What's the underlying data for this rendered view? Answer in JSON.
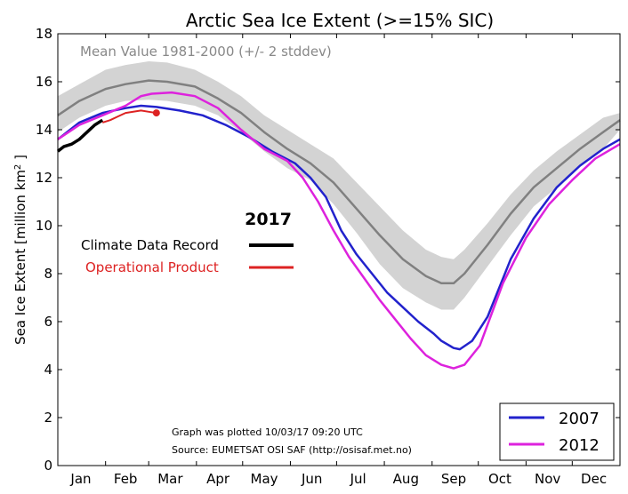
{
  "chart_data": {
    "type": "line",
    "title": "Arctic Sea Ice Extent (>=15% SIC)",
    "ylabel": "Sea Ice Extent [million km",
    "ylabel_sup": "2",
    "ylabel_end": " ]",
    "ylim": [
      0,
      18
    ],
    "xlim": [
      1,
      366
    ],
    "y_ticks": [
      0,
      2,
      4,
      6,
      8,
      10,
      12,
      14,
      16,
      18
    ],
    "month_labels": [
      "Jan",
      "Feb",
      "Mar",
      "Apr",
      "May",
      "Jun",
      "Jul",
      "Aug",
      "Sep",
      "Oct",
      "Nov",
      "Dec"
    ],
    "month_label_days": [
      16,
      45,
      74,
      105,
      135,
      166,
      196,
      227,
      258,
      288,
      319,
      349
    ],
    "month_tick_days": [
      1,
      32,
      60,
      91,
      121,
      152,
      182,
      213,
      244,
      274,
      305,
      335,
      366
    ],
    "mean_label": "Mean Value 1981-2000 (+/- 2 stddev)",
    "mean_band_color": "#d3d3d3",
    "series": [
      {
        "name": "Mean Value 1981-2000",
        "color": "#808080",
        "x": [
          1,
          15,
          32,
          45,
          60,
          72,
          90,
          105,
          120,
          135,
          150,
          165,
          180,
          195,
          210,
          225,
          240,
          250,
          258,
          265,
          280,
          295,
          310,
          325,
          340,
          355,
          366
        ],
        "y": [
          14.6,
          15.2,
          15.7,
          15.9,
          16.05,
          16.0,
          15.8,
          15.3,
          14.7,
          13.9,
          13.2,
          12.6,
          11.8,
          10.7,
          9.6,
          8.6,
          7.9,
          7.6,
          7.6,
          8.0,
          9.2,
          10.5,
          11.6,
          12.4,
          13.2,
          13.9,
          14.4
        ],
        "band_upper": [
          15.4,
          15.9,
          16.5,
          16.7,
          16.85,
          16.8,
          16.5,
          16.0,
          15.4,
          14.6,
          14.0,
          13.4,
          12.8,
          11.8,
          10.8,
          9.8,
          9.0,
          8.7,
          8.6,
          9.0,
          10.1,
          11.3,
          12.3,
          13.1,
          13.8,
          14.5,
          14.7
        ],
        "band_lower": [
          13.9,
          14.5,
          15.0,
          15.2,
          15.25,
          15.2,
          15.0,
          14.6,
          13.9,
          13.1,
          12.4,
          11.9,
          10.9,
          9.7,
          8.4,
          7.4,
          6.8,
          6.5,
          6.5,
          7.0,
          8.3,
          9.6,
          10.8,
          11.6,
          12.5,
          13.2,
          14.0
        ]
      },
      {
        "name": "2007",
        "color": "#2222cc",
        "x": [
          1,
          15,
          30,
          45,
          55,
          65,
          80,
          95,
          110,
          125,
          140,
          155,
          165,
          175,
          185,
          195,
          205,
          215,
          225,
          235,
          245,
          250,
          258,
          262,
          270,
          280,
          295,
          310,
          325,
          340,
          355,
          366
        ],
        "y": [
          13.6,
          14.3,
          14.7,
          14.9,
          15.0,
          14.95,
          14.8,
          14.6,
          14.2,
          13.7,
          13.1,
          12.6,
          12.0,
          11.2,
          9.8,
          8.8,
          8.0,
          7.2,
          6.6,
          6.0,
          5.5,
          5.2,
          4.9,
          4.85,
          5.2,
          6.2,
          8.6,
          10.3,
          11.6,
          12.5,
          13.2,
          13.6
        ]
      },
      {
        "name": "2012",
        "color": "#dd22dd",
        "x": [
          1,
          15,
          30,
          45,
          55,
          62,
          75,
          90,
          105,
          120,
          135,
          150,
          160,
          170,
          180,
          190,
          200,
          210,
          220,
          230,
          240,
          250,
          258,
          265,
          275,
          290,
          305,
          320,
          335,
          350,
          366
        ],
        "y": [
          13.6,
          14.2,
          14.6,
          15.0,
          15.4,
          15.5,
          15.55,
          15.4,
          14.9,
          14.0,
          13.2,
          12.7,
          12.0,
          11.0,
          9.8,
          8.7,
          7.8,
          6.9,
          6.1,
          5.3,
          4.6,
          4.2,
          4.05,
          4.2,
          5.0,
          7.6,
          9.5,
          10.9,
          11.9,
          12.8,
          13.4
        ]
      },
      {
        "name": "Climate Data Record",
        "color": "#000000",
        "x": [
          1,
          5,
          10,
          15,
          20,
          25,
          30
        ],
        "y": [
          13.1,
          13.3,
          13.4,
          13.6,
          13.9,
          14.2,
          14.4
        ]
      },
      {
        "name": "Operational Product",
        "color": "#dd2222",
        "x": [
          30,
          35,
          40,
          45,
          50,
          55,
          60,
          65
        ],
        "y": [
          14.3,
          14.4,
          14.55,
          14.7,
          14.75,
          14.8,
          14.75,
          14.7
        ]
      }
    ],
    "legend_year_label": "2017",
    "legend_cdr_label": "Climate Data Record",
    "legend_op_label": "Operational Product",
    "legend_2007": "2007",
    "legend_2012": "2012",
    "note_line1": "Graph was plotted 10/03/17 09:20 UTC",
    "note_line2": "Source: EUMETSAT OSI SAF (http://osisaf.met.no)"
  }
}
